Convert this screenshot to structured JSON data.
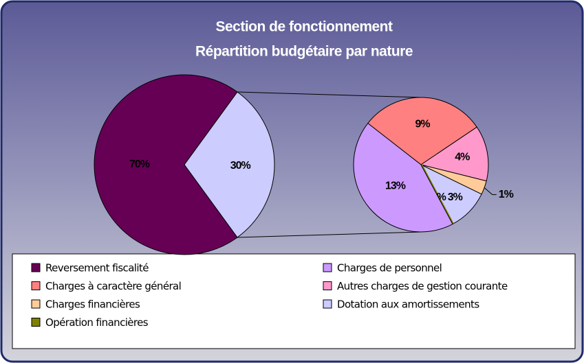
{
  "chart_data": {
    "type": "pie-of-pie",
    "title": "Section de fonctionnement",
    "subtitle": "Répartition budgétaire par nature",
    "categories": [
      "Reversement fiscalité",
      "Charges de personnel",
      "Charges à caractère général",
      "Autres charges de gestion courante",
      "Charges financières",
      "Dotation aux amortissements",
      "Opération financières"
    ],
    "values": [
      70,
      13,
      9,
      4,
      1,
      3,
      0
    ],
    "value_labels": [
      "70%",
      "13%",
      "9%",
      "4%",
      "1%",
      "3%",
      "0%"
    ],
    "colors": [
      "#660055",
      "#cc99ff",
      "#ff8080",
      "#ff99cc",
      "#ffcc99",
      "#ccccff",
      "#808000"
    ],
    "main_pie_count": 1,
    "other_value": 30,
    "other_label": "30%",
    "other_color": "#ccccff",
    "secondary_order": [
      2,
      3,
      4,
      5,
      6,
      1
    ],
    "legend": "bottom"
  }
}
